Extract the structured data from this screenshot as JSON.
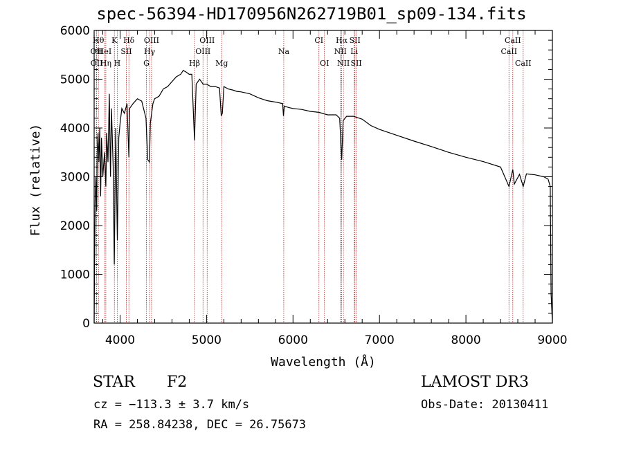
{
  "chart_data": {
    "type": "line",
    "title": "spec-56394-HD170956N262719B01_sp09-134.fits",
    "xlabel": "Wavelength (Å)",
    "ylabel": "Flux (relative)",
    "xlim": [
      3700,
      9000
    ],
    "ylim": [
      0,
      6000
    ],
    "grid": false,
    "x_ticks": [
      "4000",
      "5000",
      "6000",
      "7000",
      "8000",
      "9000"
    ],
    "y_ticks": [
      "0",
      "1000",
      "2000",
      "3000",
      "4000",
      "5000",
      "6000"
    ],
    "spectrum": {
      "x": [
        3700,
        3705,
        3712,
        3720,
        3730,
        3735,
        3745,
        3755,
        3765,
        3775,
        3785,
        3800,
        3820,
        3835,
        3845,
        3860,
        3875,
        3889,
        3900,
        3920,
        3933,
        3950,
        3968,
        3985,
        4000,
        4020,
        4050,
        4080,
        4102,
        4110,
        4150,
        4200,
        4250,
        4300,
        4320,
        4340,
        4350,
        4380,
        4400,
        4450,
        4500,
        4550,
        4600,
        4650,
        4700,
        4730,
        4760,
        4800,
        4830,
        4861,
        4880,
        4920,
        4960,
        5000,
        5050,
        5100,
        5150,
        5170,
        5183,
        5200,
        5250,
        5300,
        5350,
        5400,
        5500,
        5600,
        5700,
        5800,
        5880,
        5890,
        5900,
        5950,
        6000,
        6100,
        6200,
        6300,
        6400,
        6500,
        6540,
        6563,
        6580,
        6620,
        6700,
        6800,
        6900,
        7000,
        7200,
        7400,
        7600,
        7800,
        8000,
        8200,
        8400,
        8498,
        8542,
        8560,
        8620,
        8662,
        8700,
        8800,
        8900,
        8950,
        8975,
        8985,
        9000
      ],
      "y": [
        0,
        1200,
        2500,
        3000,
        2300,
        3500,
        3900,
        3300,
        4000,
        2600,
        3800,
        3000,
        3500,
        2800,
        3900,
        3300,
        4700,
        3000,
        4400,
        3200,
        1200,
        4000,
        1700,
        3800,
        4100,
        4400,
        4300,
        4500,
        3400,
        4400,
        4500,
        4600,
        4550,
        4200,
        3350,
        3300,
        4100,
        4500,
        4600,
        4650,
        4800,
        4850,
        4950,
        5050,
        5100,
        5180,
        5150,
        5100,
        5100,
        3750,
        4900,
        5000,
        4900,
        4900,
        4850,
        4850,
        4820,
        4250,
        4300,
        4850,
        4800,
        4780,
        4750,
        4740,
        4700,
        4620,
        4560,
        4530,
        4500,
        4250,
        4450,
        4420,
        4400,
        4380,
        4340,
        4320,
        4270,
        4270,
        4200,
        3350,
        4150,
        4240,
        4240,
        4180,
        4050,
        3970,
        3850,
        3730,
        3620,
        3500,
        3400,
        3310,
        3200,
        2800,
        3150,
        2850,
        3050,
        2800,
        3060,
        3040,
        3000,
        2950,
        2800,
        600,
        0
      ]
    },
    "line_markers": [
      {
        "label": "Hθ",
        "x": 3750,
        "row": 1,
        "dx": 0
      },
      {
        "label": "K",
        "x": 3934,
        "row": 1,
        "dx": 0
      },
      {
        "label": "Hδ",
        "x": 4102,
        "row": 1,
        "dx": 0
      },
      {
        "label": "OIII",
        "x": 4364,
        "row": 1,
        "dx": 0
      },
      {
        "label": "OIII",
        "x": 5007,
        "row": 1,
        "dx": 0
      },
      {
        "label": "CI",
        "x": 6300,
        "row": 1,
        "dx": 0
      },
      {
        "label": "Hα",
        "x": 6563,
        "row": 1,
        "dx": 0
      },
      {
        "label": "SII",
        "x": 6716,
        "row": 1,
        "dx": 0
      },
      {
        "label": "CaII",
        "x": 8542,
        "row": 1,
        "dx": 0
      },
      {
        "label": "OII",
        "x": 3727,
        "row": 2,
        "dx": 0
      },
      {
        "label": "HeI",
        "x": 3820,
        "row": 2,
        "dx": 0
      },
      {
        "label": "SII",
        "x": 4072,
        "row": 2,
        "dx": 0
      },
      {
        "label": "Hγ",
        "x": 4341,
        "row": 2,
        "dx": 0
      },
      {
        "label": "OIII",
        "x": 4959,
        "row": 2,
        "dx": 0
      },
      {
        "label": "Na",
        "x": 5893,
        "row": 2,
        "dx": 0
      },
      {
        "label": "NII",
        "x": 6548,
        "row": 2,
        "dx": 0
      },
      {
        "label": "Li",
        "x": 6708,
        "row": 2,
        "dx": 0
      },
      {
        "label": "CaII",
        "x": 8498,
        "row": 2,
        "dx": 0
      },
      {
        "label": "OII",
        "x": 3729,
        "row": 3,
        "dx": 0
      },
      {
        "label": "Hη",
        "x": 3835,
        "row": 3,
        "dx": 0
      },
      {
        "label": "H",
        "x": 3968,
        "row": 3,
        "dx": 0
      },
      {
        "label": "G",
        "x": 4305,
        "row": 3,
        "dx": 0
      },
      {
        "label": "Hβ",
        "x": 4861,
        "row": 3,
        "dx": 0
      },
      {
        "label": "Mg",
        "x": 5175,
        "row": 3,
        "dx": 0
      },
      {
        "label": "OI",
        "x": 6364,
        "row": 3,
        "dx": 0
      },
      {
        "label": "NII",
        "x": 6583,
        "row": 3,
        "dx": 0
      },
      {
        "label": "SII",
        "x": 6731,
        "row": 3,
        "dx": 0
      },
      {
        "label": "CaII",
        "x": 8662,
        "row": 3,
        "dx": 0
      }
    ]
  },
  "footer": {
    "object_class": "STAR",
    "subclass": "F2",
    "survey": "LAMOST DR3",
    "redshift": "cz = −113.3 ± 3.7 km/s",
    "obs_date": "Obs-Date: 20130411",
    "coords": "RA = 258.84238, DEC =  26.75673"
  },
  "colors": {
    "spectrum": "#000000",
    "marker_line": "#b22222",
    "axes": "#000000",
    "background": "#ffffff"
  }
}
